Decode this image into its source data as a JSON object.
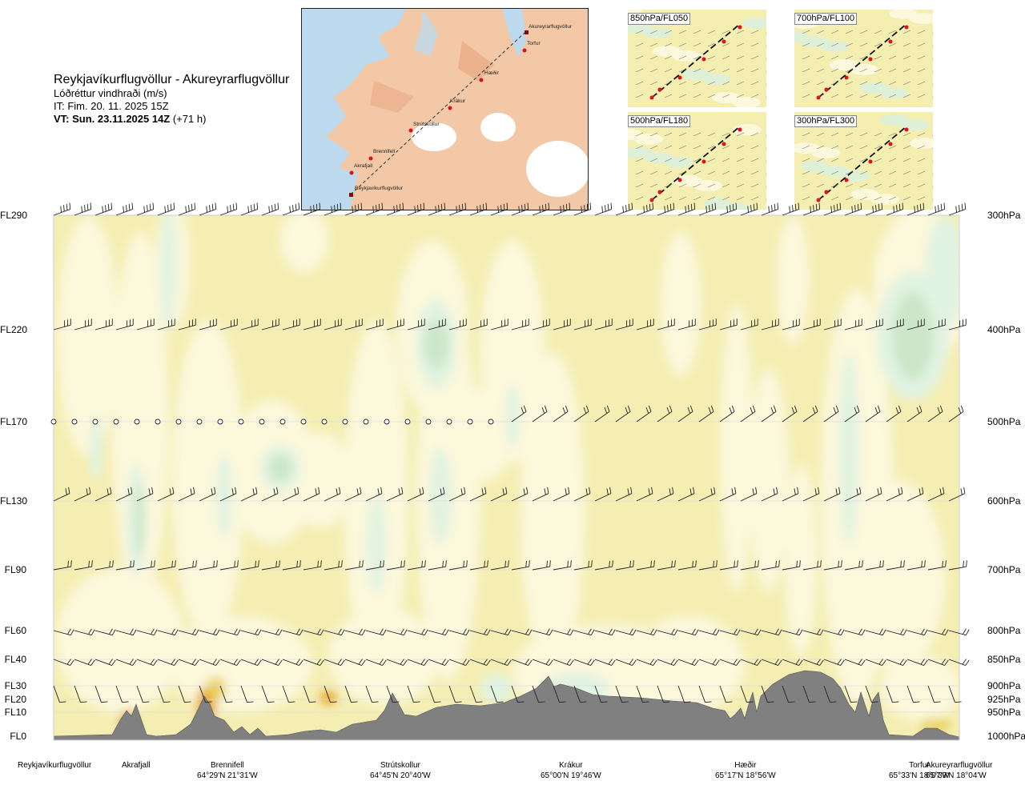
{
  "header": {
    "route": "Reykjavíkurflugvöllur - Akureyrarflugvöllur",
    "parameter": "Lóðréttur vindhraði (m/s)",
    "issue_time": "IT: Fim. 20. 11. 2025 15Z",
    "valid_prefix": "VT: Sun. 23.11.2025 14Z",
    "valid_offset": "(+71 h)"
  },
  "map": {
    "waypoints": [
      "Akureyrarflugvöllur",
      "Torfur",
      "Hæðir",
      "Krákur",
      "Strútskollur",
      "Brennifell",
      "Akrafjall",
      "Reykjavíkurflugvöllur"
    ]
  },
  "mini_maps": [
    {
      "label": "850hPa/FL050"
    },
    {
      "label": "700hPa/FL100"
    },
    {
      "label": "500hPa/FL180"
    },
    {
      "label": "300hPa/FL300"
    }
  ],
  "colors": {
    "neutral": "#f5eeb3",
    "weak": "#fbf8dc",
    "lightgreen": "#e1f3e1",
    "green": "#cbe6c8",
    "orange": "#e6a021",
    "terrain": "#808080",
    "water": "#bcd9ee",
    "land": "#f2c8a6"
  },
  "chart_data": {
    "type": "cross-section",
    "title": "Lóðréttur vindhraði (m/s)",
    "y_levels_fl": [
      "FL290",
      "FL220",
      "FL170",
      "FL130",
      "FL90",
      "FL60",
      "FL40",
      "FL30",
      "FL20",
      "FL10",
      "FL0"
    ],
    "y_levels_hpa": [
      "300hPa",
      "400hPa",
      "500hPa",
      "600hPa",
      "700hPa",
      "800hPa",
      "850hPa",
      "900hPa",
      "925hPa",
      "950hPa",
      "1000hPa"
    ],
    "locations": [
      {
        "name": "Reykjavíkurflugvöllur",
        "coord": ""
      },
      {
        "name": "Akrafjall",
        "coord": ""
      },
      {
        "name": "Brennifell",
        "coord": "64°29'N 21°31'W"
      },
      {
        "name": "Strútskollur",
        "coord": "64°45'N 20°40'W"
      },
      {
        "name": "Krákur",
        "coord": "65°00'N 19°46'W"
      },
      {
        "name": "Hæðir",
        "coord": "65°17'N 18°56'W"
      },
      {
        "name": "Torfur",
        "coord": "65°33'N 18°07'W"
      },
      {
        "name": "Akureyrarflugvöllur",
        "coord": "65°39'N 18°04'W"
      }
    ],
    "grid": true
  }
}
